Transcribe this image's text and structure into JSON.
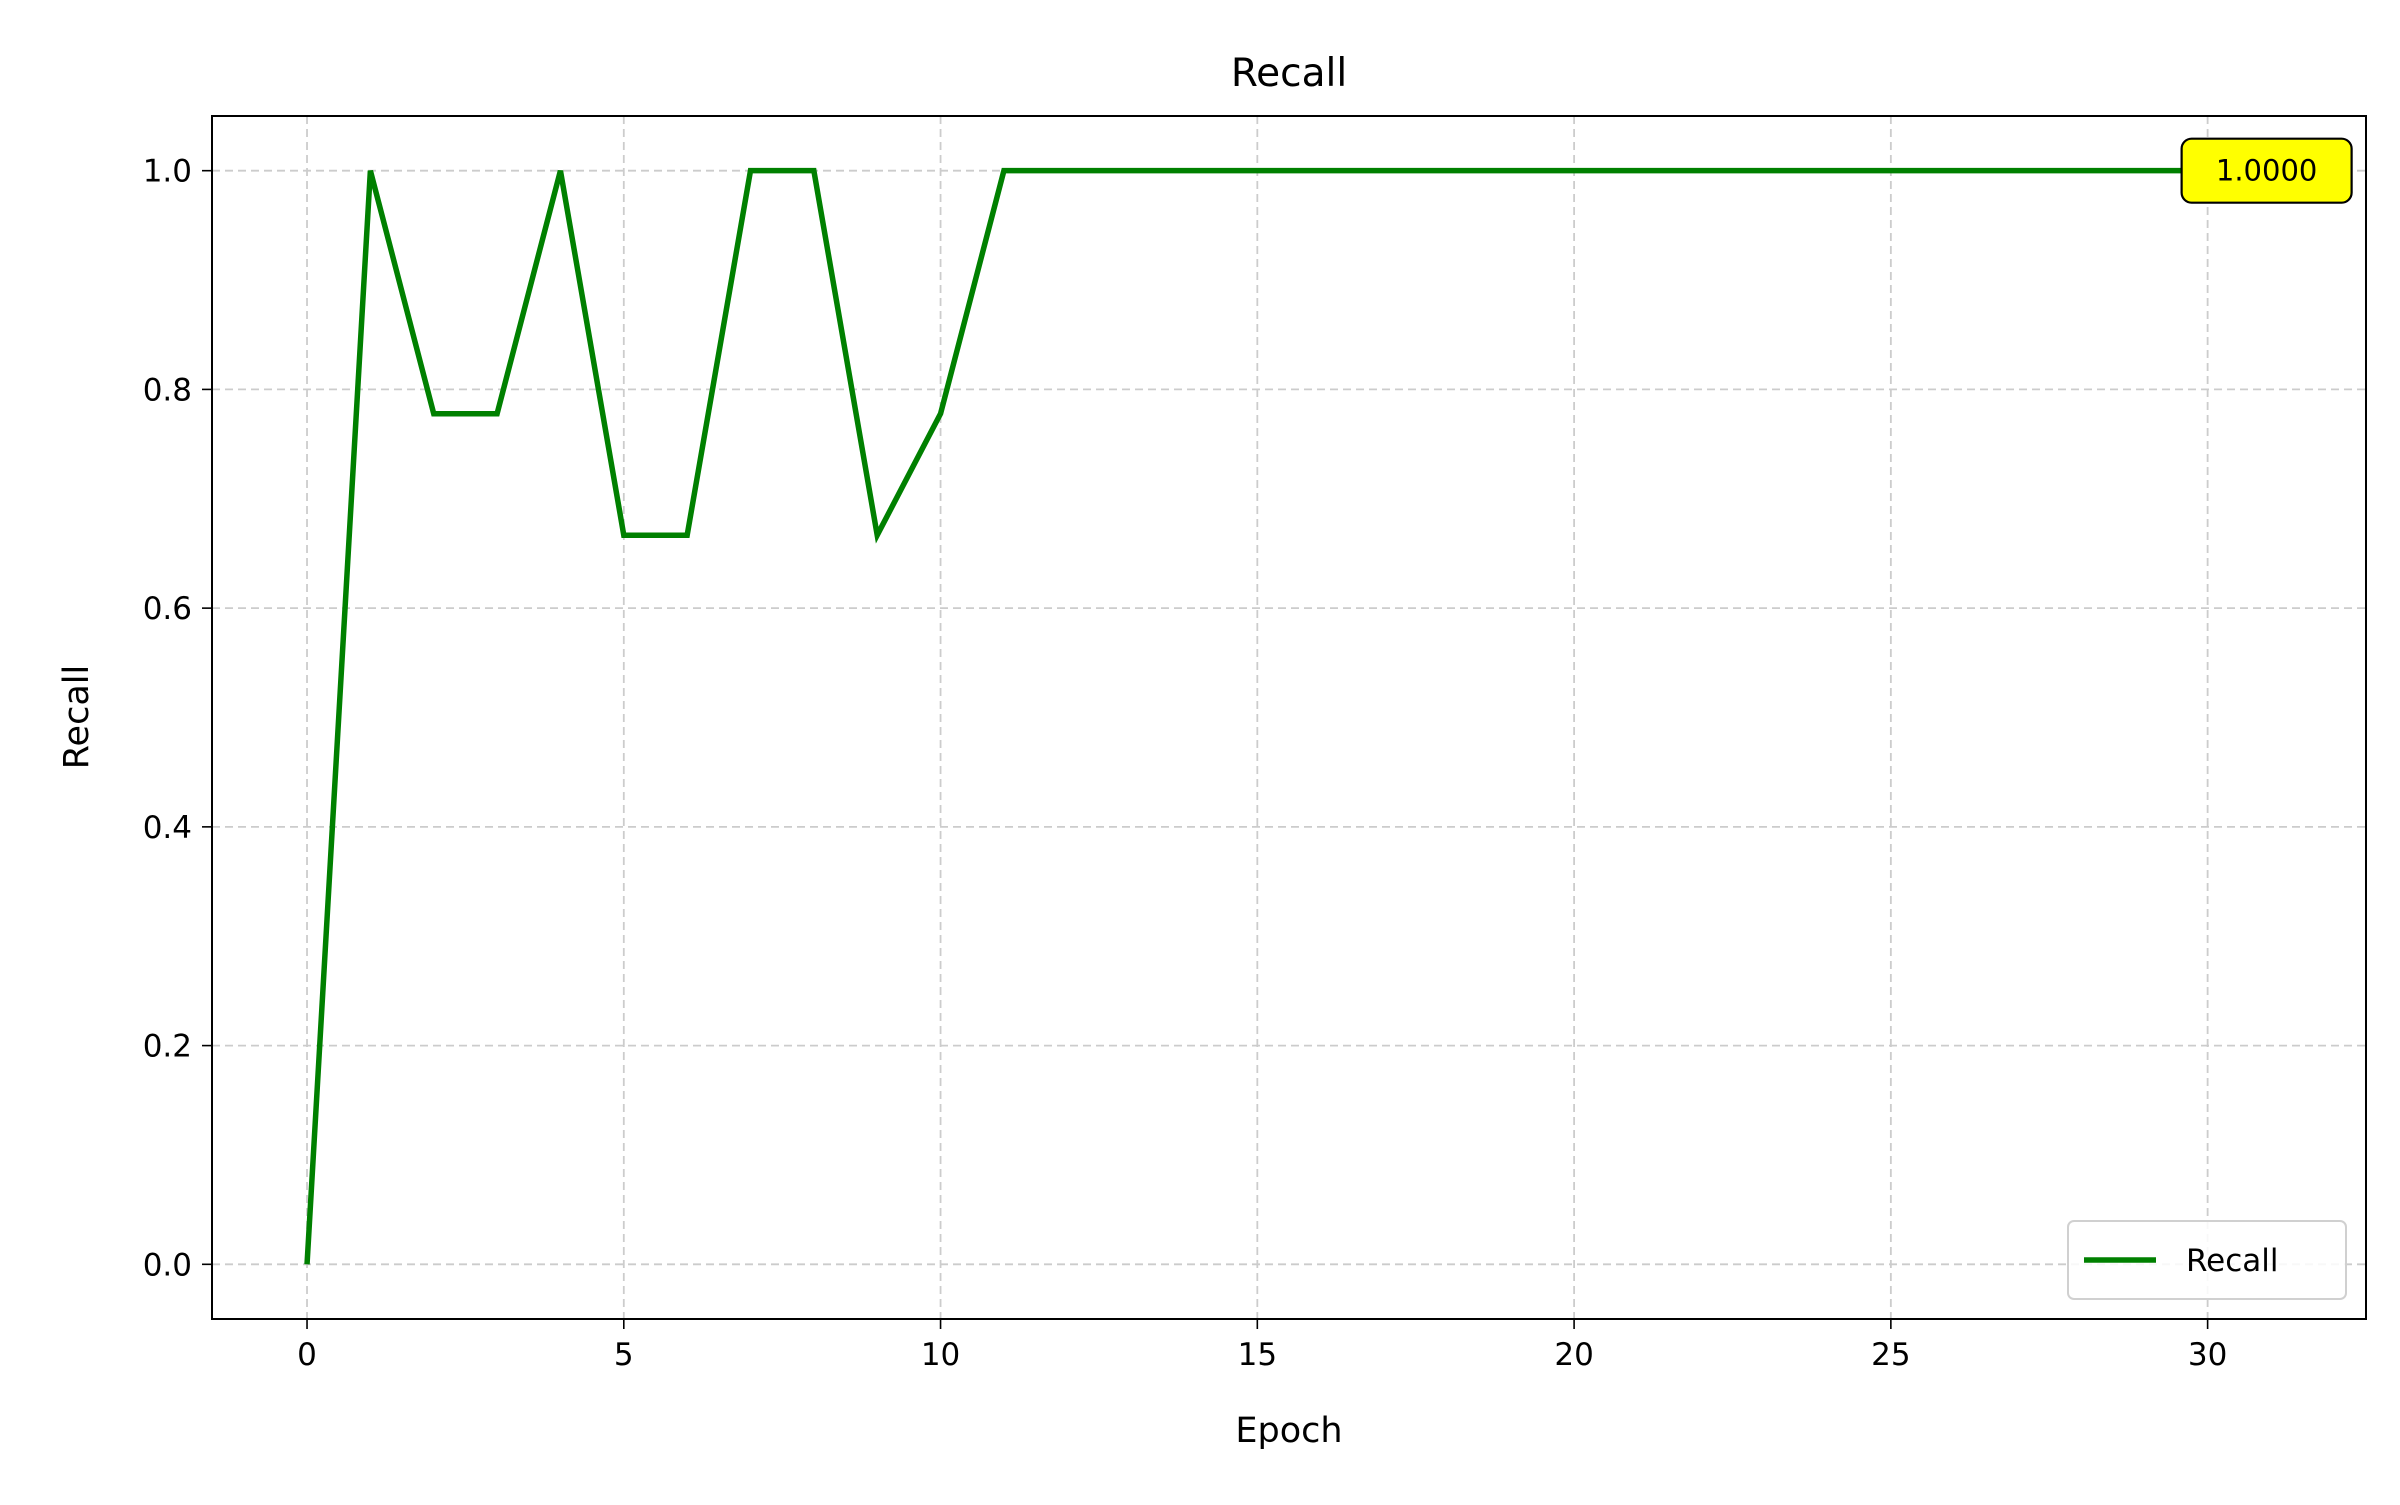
{
  "chart_data": {
    "type": "line",
    "title": "Recall",
    "xlabel": "Epoch",
    "ylabel": "Recall",
    "xlim": [
      -1.5,
      32.5
    ],
    "ylim": [
      -0.05,
      1.05
    ],
    "xticks": [
      0,
      5,
      10,
      15,
      20,
      25,
      30
    ],
    "yticks": [
      0.0,
      0.2,
      0.4,
      0.6,
      0.8,
      1.0
    ],
    "grid": true,
    "legend_position": "lower-right",
    "series": [
      {
        "name": "Recall",
        "color": "#008000",
        "x": [
          0,
          1,
          2,
          3,
          4,
          5,
          6,
          7,
          8,
          9,
          10,
          11,
          12,
          13,
          14,
          15,
          16,
          17,
          18,
          19,
          20,
          21,
          22,
          23,
          24,
          25,
          26,
          27,
          28,
          29,
          30
        ],
        "values": [
          0.0,
          1.0,
          0.7778,
          0.7778,
          1.0,
          0.6667,
          0.6667,
          1.0,
          1.0,
          0.6667,
          0.7778,
          1.0,
          1.0,
          1.0,
          1.0,
          1.0,
          1.0,
          1.0,
          1.0,
          1.0,
          1.0,
          1.0,
          1.0,
          1.0,
          1.0,
          1.0,
          1.0,
          1.0,
          1.0,
          1.0,
          1.0
        ]
      }
    ],
    "annotation": {
      "text": "1.0000",
      "x": 30,
      "y": 1.0,
      "background": "#ffff00"
    }
  }
}
